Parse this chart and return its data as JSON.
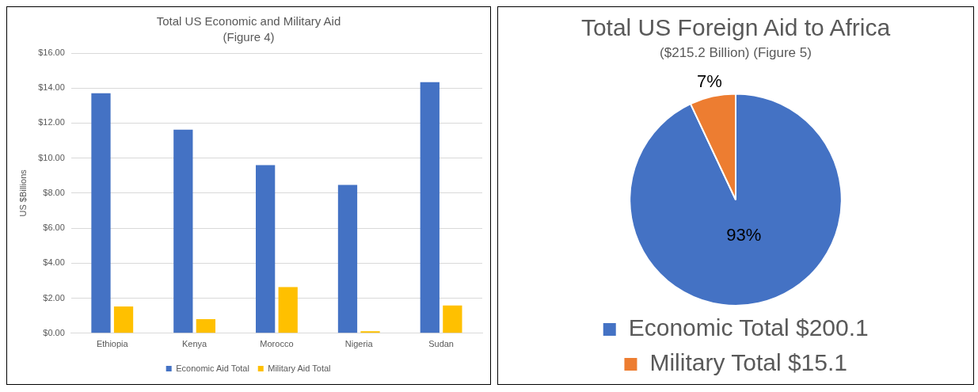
{
  "chart_data": [
    {
      "type": "bar",
      "title": "Total US Economic and Military Aid",
      "subtitle": "(Figure 4)",
      "ylabel": "US $Billions",
      "categories": [
        "Ethiopia",
        "Kenya",
        "Morocco",
        "Nigeria",
        "Sudan"
      ],
      "series": [
        {
          "name": "Economic Aid Total",
          "color": "#4472c4",
          "values": [
            13.7,
            11.63,
            9.6,
            8.47,
            14.34
          ]
        },
        {
          "name": "Military Aid Total",
          "color": "#ffc000",
          "values": [
            1.53,
            0.81,
            2.64,
            0.11,
            1.58
          ]
        }
      ],
      "ylim": [
        0,
        16
      ],
      "yticks": [
        {
          "value": 0,
          "label": "$0.00"
        },
        {
          "value": 2,
          "label": "$2.00"
        },
        {
          "value": 4,
          "label": "$4.00"
        },
        {
          "value": 6,
          "label": "$6.00"
        },
        {
          "value": 8,
          "label": "$8.00"
        },
        {
          "value": 10,
          "label": "$10.00"
        },
        {
          "value": 12,
          "label": "$12.00"
        },
        {
          "value": 14,
          "label": "$14.00"
        },
        {
          "value": 16,
          "label": "$16.00"
        }
      ],
      "grid": "y",
      "legend": "bottom"
    },
    {
      "type": "pie",
      "title": "Total US Foreign Aid to Africa",
      "subtitle": "($215.2 Billion) (Figure 5)",
      "categories": [
        "Economic Total $200.1",
        "Military Total $15.1"
      ],
      "values": [
        93,
        7
      ],
      "colors": [
        "#4472c4",
        "#ed7d31"
      ],
      "value_labels": [
        "93%",
        "7%"
      ],
      "legend": "bottom"
    }
  ]
}
